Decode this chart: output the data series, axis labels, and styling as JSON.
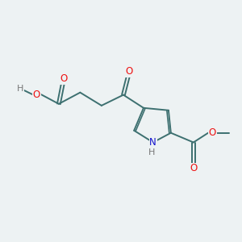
{
  "bg_color": "#edf2f3",
  "bond_color": "#3d7070",
  "o_color": "#ee1111",
  "n_color": "#1111cc",
  "h_color": "#777777",
  "figsize": [
    3.0,
    3.0
  ],
  "dpi": 100,
  "xlim": [
    0,
    10
  ],
  "ylim": [
    0,
    10
  ]
}
